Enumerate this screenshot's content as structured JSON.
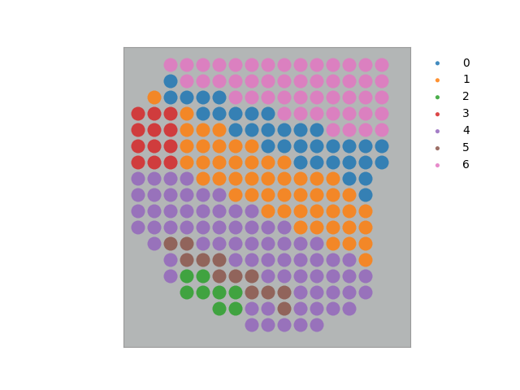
{
  "chart_data": {
    "type": "scatter",
    "xlim": [
      152,
      505
    ],
    "ylim": [
      427,
      58
    ],
    "tick_labels": false,
    "legend": "upper left",
    "series": [
      {
        "name": "0",
        "color": "#1f77b4",
        "x": [
          210,
          210,
          230,
          250,
          270,
          250,
          270,
          290,
          310,
          330,
          290,
          310,
          330,
          350,
          370,
          390,
          330,
          350,
          370,
          390,
          410,
          430,
          450,
          470,
          370,
          390,
          410,
          430,
          450,
          470,
          430,
          450,
          450
        ],
        "y": [
          100,
          120,
          120,
          120,
          120,
          140,
          140,
          140,
          140,
          140,
          160,
          160,
          160,
          160,
          160,
          160,
          180,
          180,
          180,
          180,
          180,
          180,
          180,
          180,
          200,
          200,
          200,
          200,
          200,
          200,
          220,
          220,
          240
        ]
      },
      {
        "name": "1",
        "color": "#ff7f0e",
        "x": [
          190,
          230,
          230,
          250,
          270,
          230,
          250,
          270,
          290,
          310,
          230,
          250,
          270,
          290,
          310,
          330,
          350,
          250,
          270,
          290,
          310,
          330,
          350,
          370,
          390,
          410,
          290,
          310,
          330,
          350,
          370,
          390,
          410,
          430,
          330,
          350,
          370,
          390,
          410,
          430,
          450,
          370,
          390,
          410,
          430,
          450,
          410,
          430,
          450,
          450
        ],
        "y": [
          120,
          140,
          160,
          160,
          160,
          180,
          180,
          180,
          180,
          180,
          200,
          200,
          200,
          200,
          200,
          200,
          200,
          220,
          220,
          220,
          220,
          220,
          220,
          220,
          220,
          220,
          240,
          240,
          240,
          240,
          240,
          240,
          240,
          240,
          260,
          260,
          260,
          260,
          260,
          260,
          260,
          280,
          280,
          280,
          280,
          280,
          300,
          300,
          300,
          320
        ]
      },
      {
        "name": "2",
        "color": "#2ca02c",
        "x": [
          230,
          250,
          230,
          250,
          270,
          290,
          270,
          290
        ],
        "y": [
          340,
          340,
          360,
          360,
          360,
          360,
          380,
          380
        ]
      },
      {
        "name": "3",
        "color": "#d62728",
        "x": [
          170,
          190,
          210,
          170,
          190,
          210,
          170,
          190,
          210,
          170,
          190,
          210
        ],
        "y": [
          140,
          140,
          140,
          160,
          160,
          160,
          180,
          180,
          180,
          200,
          200,
          200
        ]
      },
      {
        "name": "4",
        "color": "#9467bd",
        "x": [
          170,
          190,
          210,
          230,
          170,
          190,
          210,
          230,
          250,
          270,
          170,
          190,
          210,
          230,
          250,
          270,
          290,
          310,
          170,
          190,
          210,
          230,
          250,
          270,
          290,
          310,
          330,
          350,
          190,
          250,
          270,
          290,
          310,
          330,
          350,
          370,
          390,
          210,
          290,
          310,
          330,
          350,
          370,
          390,
          410,
          430,
          210,
          330,
          350,
          370,
          390,
          410,
          430,
          450,
          370,
          390,
          410,
          430,
          450,
          310,
          330,
          370,
          390,
          410,
          430,
          310,
          330,
          350,
          370,
          390
        ],
        "y": [
          220,
          220,
          220,
          220,
          240,
          240,
          240,
          240,
          240,
          240,
          260,
          260,
          260,
          260,
          260,
          260,
          260,
          260,
          280,
          280,
          280,
          280,
          280,
          280,
          280,
          280,
          280,
          280,
          300,
          300,
          300,
          300,
          300,
          300,
          300,
          300,
          300,
          320,
          320,
          320,
          320,
          320,
          320,
          320,
          320,
          320,
          340,
          340,
          340,
          340,
          340,
          340,
          340,
          340,
          360,
          360,
          360,
          360,
          360,
          380,
          380,
          380,
          380,
          380,
          380,
          400,
          400,
          400,
          400,
          400
        ]
      },
      {
        "name": "5",
        "color": "#8c564b",
        "x": [
          210,
          230,
          230,
          250,
          270,
          270,
          290,
          310,
          310,
          330,
          350,
          350
        ],
        "y": [
          300,
          300,
          320,
          320,
          320,
          340,
          340,
          340,
          360,
          360,
          360,
          380
        ]
      },
      {
        "name": "6",
        "color": "#e377c2",
        "x": [
          210,
          230,
          250,
          270,
          290,
          310,
          330,
          350,
          370,
          390,
          410,
          430,
          450,
          470,
          230,
          250,
          270,
          290,
          310,
          330,
          350,
          370,
          390,
          410,
          430,
          450,
          470,
          290,
          310,
          330,
          350,
          370,
          390,
          410,
          430,
          450,
          470,
          350,
          370,
          390,
          410,
          430,
          450,
          470,
          410,
          430,
          450,
          470
        ],
        "y": [
          80,
          80,
          80,
          80,
          80,
          80,
          80,
          80,
          80,
          80,
          80,
          80,
          80,
          80,
          100,
          100,
          100,
          100,
          100,
          100,
          100,
          100,
          100,
          100,
          100,
          100,
          100,
          120,
          120,
          120,
          120,
          120,
          120,
          120,
          120,
          120,
          120,
          140,
          140,
          140,
          140,
          140,
          140,
          140,
          160,
          160,
          160,
          160
        ]
      }
    ]
  }
}
